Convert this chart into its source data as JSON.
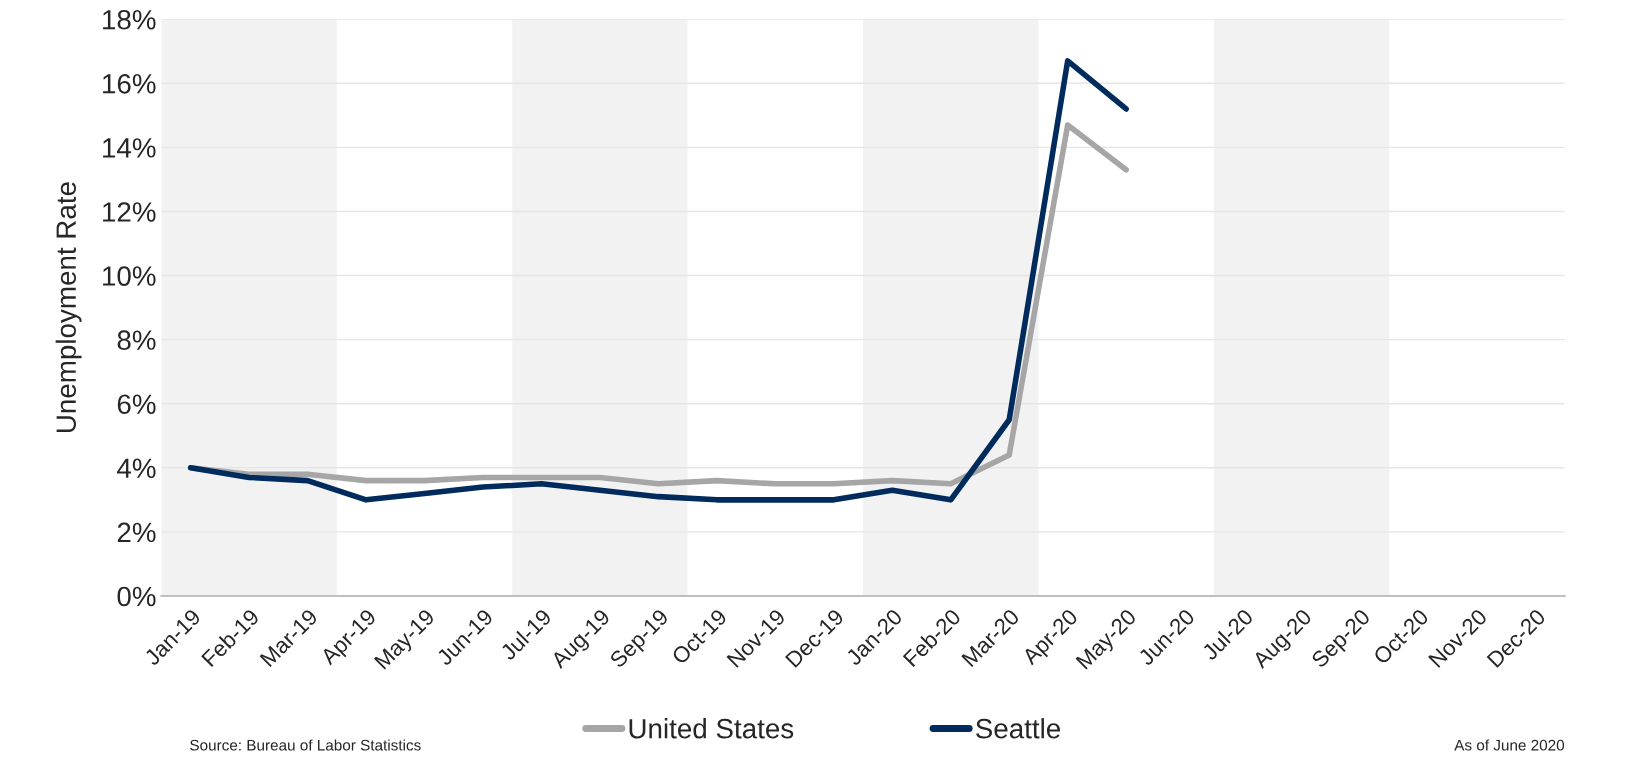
{
  "chart_data": {
    "type": "line",
    "ylabel": "Unemployment Rate",
    "categories": [
      "Jan-19",
      "Feb-19",
      "Mar-19",
      "Apr-19",
      "May-19",
      "Jun-19",
      "Jul-19",
      "Aug-19",
      "Sep-19",
      "Oct-19",
      "Nov-19",
      "Dec-19",
      "Jan-20",
      "Feb-20",
      "Mar-20",
      "Apr-20",
      "May-20",
      "Jun-20",
      "Jul-20",
      "Aug-20",
      "Sep-20",
      "Oct-20",
      "Nov-20",
      "Dec-20"
    ],
    "series": [
      {
        "name": "United States",
        "color": "#a6a6a6",
        "values": [
          4.0,
          3.8,
          3.8,
          3.6,
          3.6,
          3.7,
          3.7,
          3.7,
          3.5,
          3.6,
          3.5,
          3.5,
          3.6,
          3.5,
          4.4,
          14.7,
          13.3,
          null,
          null,
          null,
          null,
          null,
          null,
          null
        ]
      },
      {
        "name": "Seattle",
        "color": "#002b5c",
        "values": [
          4.0,
          3.7,
          3.6,
          3.0,
          3.2,
          3.4,
          3.5,
          3.3,
          3.1,
          3.0,
          3.0,
          3.0,
          3.3,
          3.0,
          5.5,
          16.7,
          15.2,
          null,
          null,
          null,
          null,
          null,
          null,
          null
        ]
      }
    ],
    "ylim": [
      0,
      18
    ],
    "yticks": [
      {
        "value": 0,
        "label": "0%"
      },
      {
        "value": 2,
        "label": "2%"
      },
      {
        "value": 4,
        "label": "4%"
      },
      {
        "value": 6,
        "label": "6%"
      },
      {
        "value": 8,
        "label": "8%"
      },
      {
        "value": 10,
        "label": "10%"
      },
      {
        "value": 12,
        "label": "12%"
      },
      {
        "value": 14,
        "label": "14%"
      },
      {
        "value": 16,
        "label": "16%"
      },
      {
        "value": 18,
        "label": "18%"
      }
    ],
    "bands": [
      {
        "axis": "x",
        "from": "Jan-19",
        "to": "Mar-19",
        "color": "#f2f2f2"
      },
      {
        "axis": "x",
        "from": "Jul-19",
        "to": "Sep-19",
        "color": "#f2f2f2"
      },
      {
        "axis": "x",
        "from": "Jan-20",
        "to": "Mar-20",
        "color": "#f2f2f2"
      },
      {
        "axis": "x",
        "from": "Jul-20",
        "to": "Sep-20",
        "color": "#f2f2f2"
      }
    ],
    "grid": "y",
    "legend": "bottom",
    "marker": "none",
    "line_style": "solid",
    "annotations": [
      "Source: Bureau of Labor Statistics",
      "As of June 2020"
    ]
  }
}
